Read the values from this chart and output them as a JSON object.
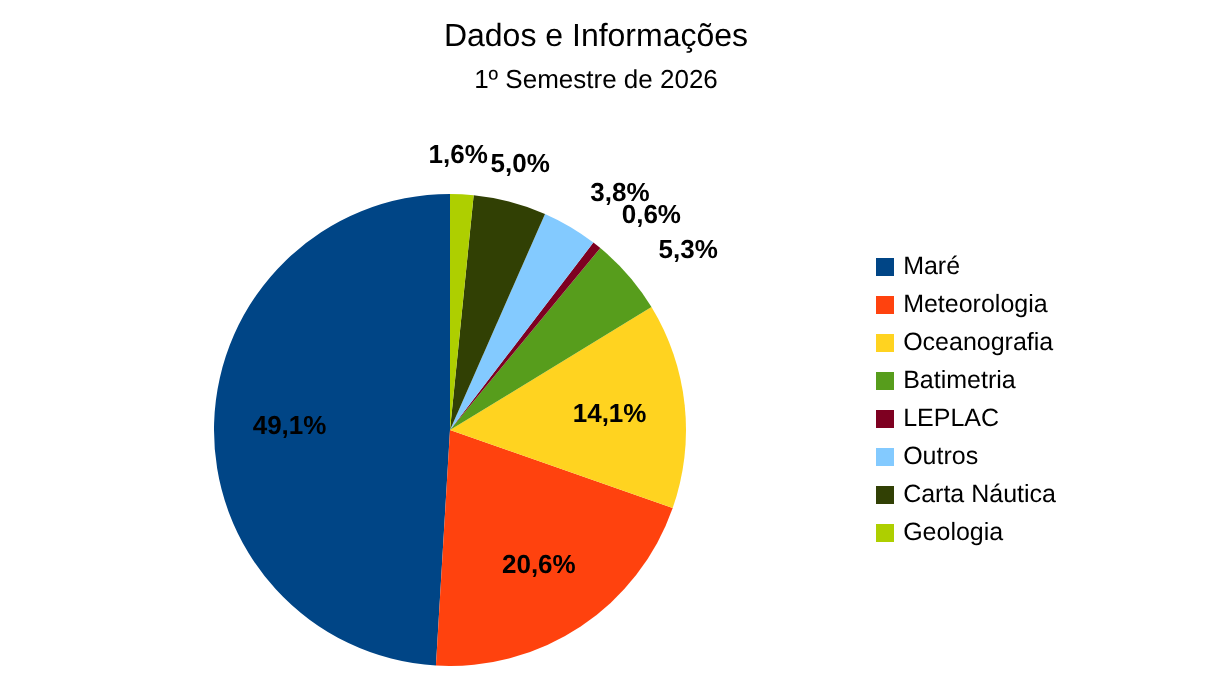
{
  "chart_data": {
    "type": "pie",
    "title": "Dados e Informações",
    "subtitle": "1º Semestre de 2026",
    "categories": [
      "Maré",
      "Meteorologia",
      "Oceanografia",
      "Batimetria",
      "LEPLAC",
      "Outros",
      "Carta Náutica",
      "Geologia"
    ],
    "values": [
      49.1,
      20.6,
      14.1,
      5.3,
      0.6,
      3.8,
      5.0,
      1.6
    ],
    "value_labels": [
      "49,1%",
      "20,6%",
      "14,1%",
      "5,3%",
      "0,6%",
      "3,8%",
      "5,0%",
      "1,6%"
    ],
    "colors": [
      "#004586",
      "#ff420e",
      "#ffd320",
      "#579d1c",
      "#7e0021",
      "#83caff",
      "#314004",
      "#aecf00"
    ],
    "legend": "right"
  }
}
